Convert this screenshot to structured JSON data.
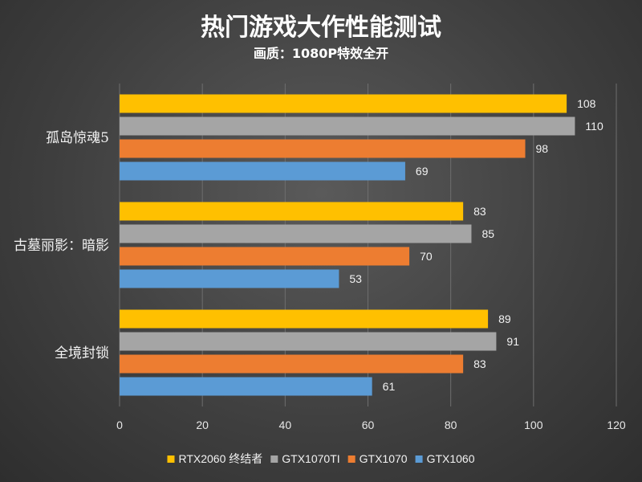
{
  "chart_data": {
    "type": "bar",
    "orientation": "horizontal",
    "title": "热门游戏大作性能测试",
    "subtitle": "画质：1080P特效全开",
    "categories": [
      "孤岛惊魂5",
      "古墓丽影：暗影",
      "全境封锁"
    ],
    "series": [
      {
        "name": "RTX2060 终结者",
        "color": "#FFC000",
        "values": [
          108,
          83,
          89
        ]
      },
      {
        "name": "GTX1070TI",
        "color": "#A5A5A5",
        "values": [
          110,
          85,
          91
        ]
      },
      {
        "name": "GTX1070",
        "color": "#ED7D31",
        "values": [
          98,
          70,
          83
        ]
      },
      {
        "name": "GTX1060",
        "color": "#5B9BD5",
        "values": [
          69,
          53,
          61
        ]
      }
    ],
    "xlim": [
      0,
      120
    ],
    "xticks": [
      0,
      20,
      40,
      60,
      80,
      100,
      120
    ],
    "grid": true,
    "legend_position": "bottom"
  }
}
